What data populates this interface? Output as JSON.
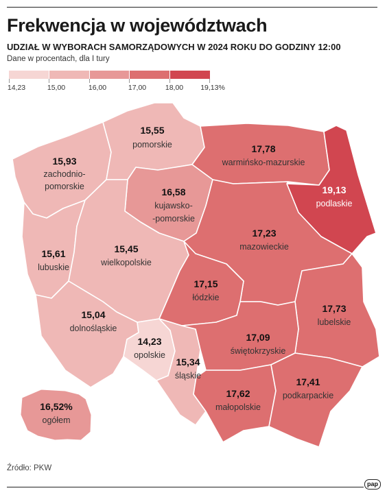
{
  "header": {
    "title": "Frekwencja w województwach",
    "subtitle": "UDZIAŁ W WYBORACH SAMORZĄDOWYCH W 2024 ROKU DO GODZINY 12:00",
    "note": "Dane w procentach, dla I tury"
  },
  "legend": {
    "labels": [
      "14,23",
      "15,00",
      "16,00",
      "17,00",
      "18,00",
      "19,13%"
    ],
    "colors": [
      "#f6d6d4",
      "#efb8b6",
      "#e79897",
      "#dd6f70",
      "#d14650"
    ]
  },
  "regions": {
    "pomorskie": {
      "value": "15,55",
      "name": "pomorskie",
      "color": "#efb8b6"
    },
    "zachodniopomorskie": {
      "value": "15,93",
      "name_line1": "zachodnio-",
      "name_line2": "pomorskie",
      "color": "#efb8b6"
    },
    "warminsko_mazurskie": {
      "value": "17,78",
      "name": "warmińsko-mazurskie",
      "color": "#dd6f70"
    },
    "podlaskie": {
      "value": "19,13",
      "name": "podlaskie",
      "color": "#d14650"
    },
    "kujawsko_pomorskie": {
      "value": "16,58",
      "name_line1": "kujawsko-",
      "name_line2": "-pomorskie",
      "color": "#e79897"
    },
    "lubuskie": {
      "value": "15,61",
      "name": "lubuskie",
      "color": "#efb8b6"
    },
    "wielkopolskie": {
      "value": "15,45",
      "name": "wielkopolskie",
      "color": "#efb8b6"
    },
    "mazowieckie": {
      "value": "17,23",
      "name": "mazowieckie",
      "color": "#dd6f70"
    },
    "lodzkie": {
      "value": "17,15",
      "name": "łódzkie",
      "color": "#dd6f70"
    },
    "lubelskie": {
      "value": "17,73",
      "name": "lubelskie",
      "color": "#dd6f70"
    },
    "dolnoslaskie": {
      "value": "15,04",
      "name": "dolnośląskie",
      "color": "#efb8b6"
    },
    "opolskie": {
      "value": "14,23",
      "name": "opolskie",
      "color": "#f6d6d4"
    },
    "slaskie": {
      "value": "15,34",
      "name": "śląskie",
      "color": "#efb8b6"
    },
    "swietokrzyskie": {
      "value": "17,09",
      "name": "świętokrzyskie",
      "color": "#dd6f70"
    },
    "malopolskie": {
      "value": "17,62",
      "name": "małopolskie",
      "color": "#dd6f70"
    },
    "podkarpackie": {
      "value": "17,41",
      "name": "podkarpackie",
      "color": "#dd6f70"
    }
  },
  "overall": {
    "value": "16,52%",
    "name": "ogółem",
    "color": "#e79897"
  },
  "footer": {
    "source": "Źródło: PKW",
    "logo": "pap"
  }
}
